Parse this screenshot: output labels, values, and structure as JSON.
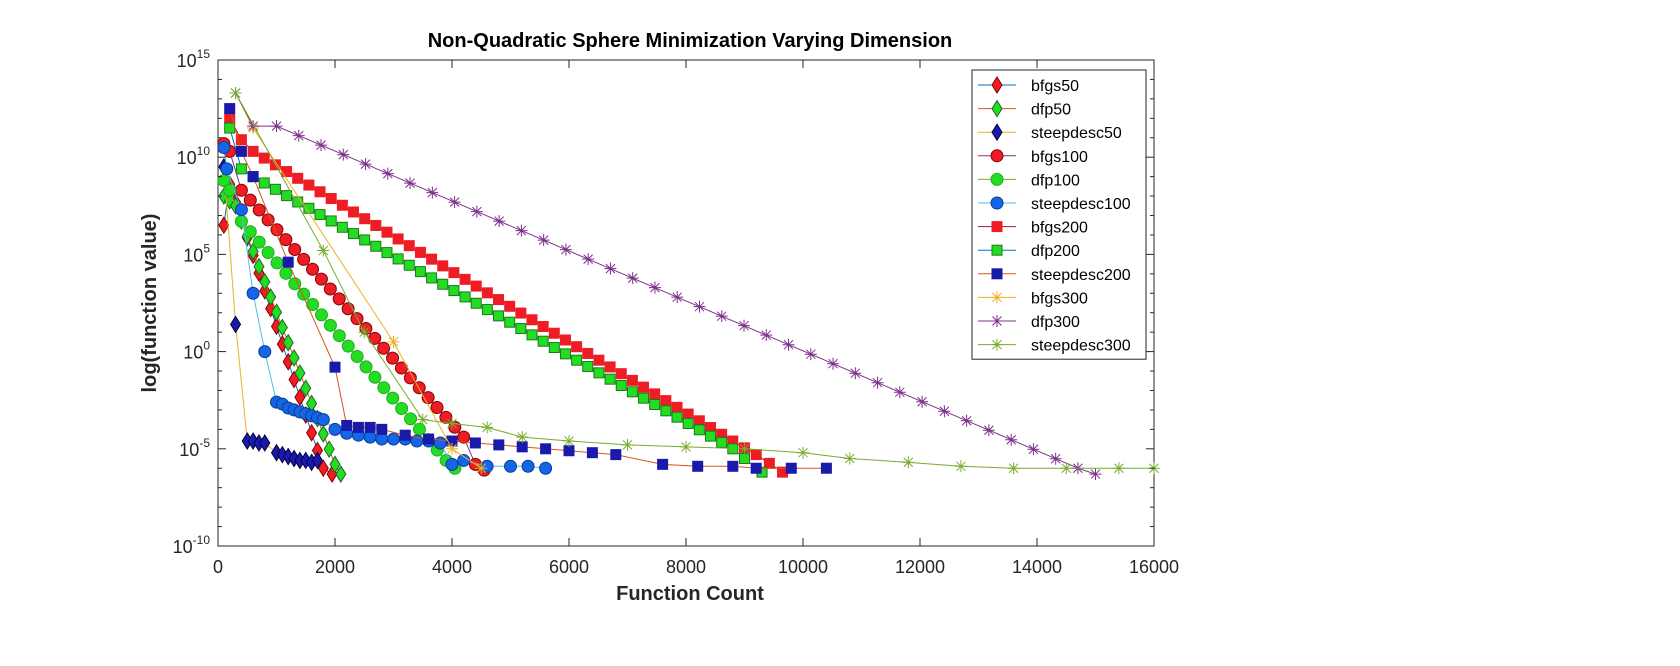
{
  "chart_data": {
    "type": "line",
    "title": "Non-Quadratic Sphere Minimization Varying Dimension",
    "xlabel": "Function Count",
    "ylabel": "log(function value)",
    "xlim": [
      0,
      16000
    ],
    "ylim_log10": [
      -10,
      15
    ],
    "y_scale": "log",
    "x_ticks": [
      "0",
      "2000",
      "4000",
      "6000",
      "8000",
      "10000",
      "12000",
      "14000",
      "16000"
    ],
    "y_ticks": [
      {
        "base": "10",
        "exp": "-10",
        "value": -10
      },
      {
        "base": "10",
        "exp": "-5",
        "value": -5
      },
      {
        "base": "10",
        "exp": "0",
        "value": 0
      },
      {
        "base": "10",
        "exp": "5",
        "value": 5
      },
      {
        "base": "10",
        "exp": "10",
        "value": 10
      },
      {
        "base": "10",
        "exp": "15",
        "value": 15
      }
    ],
    "grid": false,
    "legend_position": "top-right",
    "series": [
      {
        "name": "bfgs50",
        "marker": "diamond",
        "line_color": "#0072BD",
        "marker_fill": "#EE1C24",
        "marker_edge": "#8B0000",
        "points": [
          [
            100,
            6.5
          ],
          [
            200,
            8.6
          ],
          [
            1800,
            -6.0
          ],
          [
            1950,
            -6.3
          ]
        ]
      },
      {
        "name": "dfp50",
        "marker": "diamond",
        "line_color": "#D95319",
        "marker_fill": "#22DD22",
        "marker_edge": "#226622",
        "points": [
          [
            100,
            8.0
          ],
          [
            300,
            7.5
          ],
          [
            2000,
            -5.8
          ],
          [
            2100,
            -6.3
          ]
        ]
      },
      {
        "name": "steepdesc50",
        "marker": "diamond",
        "line_color": "#EDB120",
        "marker_fill": "#1A1AAA",
        "marker_edge": "#00004A",
        "points": [
          [
            100,
            9.5
          ],
          [
            300,
            1.4
          ],
          [
            500,
            -4.6
          ],
          [
            600,
            -4.6
          ],
          [
            700,
            -4.7
          ],
          [
            800,
            -4.7
          ],
          [
            1000,
            -5.2
          ],
          [
            1100,
            -5.3
          ],
          [
            1200,
            -5.4
          ],
          [
            1300,
            -5.5
          ],
          [
            1400,
            -5.6
          ],
          [
            1500,
            -5.6
          ],
          [
            1600,
            -5.7
          ],
          [
            1700,
            -5.6
          ]
        ]
      },
      {
        "name": "bfgs100",
        "marker": "circle",
        "line_color": "#7E2F8E",
        "marker_fill": "#EE1C24",
        "marker_edge": "#8B0000",
        "points": [
          [
            100,
            10.7
          ],
          [
            200,
            10.3
          ],
          [
            400,
            8.3
          ],
          [
            4200,
            -4.4
          ],
          [
            4400,
            -5.8
          ],
          [
            4550,
            -6.1
          ]
        ]
      },
      {
        "name": "dfp100",
        "marker": "circle",
        "line_color": "#77AC30",
        "marker_fill": "#22DD22",
        "marker_edge": "#22AA22",
        "points": [
          [
            100,
            8.8
          ],
          [
            200,
            8.3
          ],
          [
            400,
            6.7
          ],
          [
            3900,
            -5.6
          ],
          [
            4050,
            -6.0
          ]
        ]
      },
      {
        "name": "steepdesc100",
        "marker": "circle",
        "line_color": "#4DBEEE",
        "marker_fill": "#1565E8",
        "marker_edge": "#0A3D91",
        "points": [
          [
            100,
            10.5
          ],
          [
            150,
            9.4
          ],
          [
            400,
            7.3
          ],
          [
            600,
            3.0
          ],
          [
            800,
            0.0
          ],
          [
            1000,
            -2.6
          ],
          [
            1100,
            -2.7
          ],
          [
            1200,
            -2.9
          ],
          [
            1300,
            -3.0
          ],
          [
            1400,
            -3.1
          ],
          [
            1500,
            -3.2
          ],
          [
            1600,
            -3.3
          ],
          [
            1700,
            -3.4
          ],
          [
            1800,
            -3.5
          ],
          [
            2000,
            -4.0
          ],
          [
            2200,
            -4.2
          ],
          [
            2400,
            -4.3
          ],
          [
            2600,
            -4.4
          ],
          [
            2800,
            -4.5
          ],
          [
            3000,
            -4.5
          ],
          [
            3200,
            -4.5
          ],
          [
            3400,
            -4.6
          ],
          [
            3600,
            -4.6
          ],
          [
            3800,
            -4.7
          ],
          [
            4000,
            -5.8
          ],
          [
            4200,
            -5.6
          ],
          [
            4600,
            -5.9
          ],
          [
            5000,
            -5.9
          ],
          [
            5300,
            -5.9
          ],
          [
            5600,
            -6.0
          ]
        ]
      },
      {
        "name": "bfgs200",
        "marker": "square",
        "line_color": "#A2142F",
        "marker_fill": "#EE1C24",
        "marker_edge": "#EE1C24",
        "points": [
          [
            200,
            12.0
          ],
          [
            400,
            10.9
          ],
          [
            600,
            10.3
          ],
          [
            8800,
            -4.6
          ],
          [
            9200,
            -5.3
          ],
          [
            9650,
            -6.2
          ]
        ]
      },
      {
        "name": "dfp200",
        "marker": "square",
        "line_color": "#0072BD",
        "marker_fill": "#22DD22",
        "marker_edge": "#1A7A1A",
        "points": [
          [
            200,
            11.5
          ],
          [
            400,
            9.4
          ],
          [
            600,
            9.0
          ],
          [
            8800,
            -5.0
          ],
          [
            9000,
            -5.5
          ],
          [
            9300,
            -6.2
          ]
        ]
      },
      {
        "name": "steepdesc200",
        "marker": "square",
        "line_color": "#D95319",
        "marker_fill": "#1A1AAA",
        "marker_edge": "#1A1AAA",
        "points": [
          [
            200,
            12.5
          ],
          [
            400,
            10.3
          ],
          [
            600,
            9.0
          ],
          [
            1200,
            4.6
          ],
          [
            2000,
            -0.8
          ],
          [
            2200,
            -3.8
          ],
          [
            2400,
            -3.9
          ],
          [
            2600,
            -3.9
          ],
          [
            2800,
            -4.0
          ],
          [
            3200,
            -4.3
          ],
          [
            3600,
            -4.5
          ],
          [
            4000,
            -4.6
          ],
          [
            4400,
            -4.7
          ],
          [
            4800,
            -4.8
          ],
          [
            5200,
            -4.9
          ],
          [
            5600,
            -5.0
          ],
          [
            6000,
            -5.1
          ],
          [
            6400,
            -5.2
          ],
          [
            6800,
            -5.3
          ],
          [
            7600,
            -5.8
          ],
          [
            8200,
            -5.9
          ],
          [
            8800,
            -5.9
          ],
          [
            9200,
            -6.0
          ],
          [
            9800,
            -6.0
          ],
          [
            10400,
            -6.0
          ]
        ]
      },
      {
        "name": "bfgs300",
        "marker": "star",
        "line_color": "#EDB120",
        "marker_fill": "#EDB120",
        "marker_edge": "#EDB120",
        "points": [
          [
            300,
            13.3
          ],
          [
            600,
            11.5
          ],
          [
            3000,
            0.5
          ],
          [
            4000,
            -5.0
          ],
          [
            4500,
            -6.0
          ]
        ]
      },
      {
        "name": "dfp300",
        "marker": "star",
        "line_color": "#7E2F8E",
        "marker_fill": "#7E2F8E",
        "marker_edge": "#7E2F8E",
        "points": [
          [
            300,
            13.3
          ],
          [
            600,
            11.6
          ],
          [
            1000,
            11.6
          ],
          [
            14700,
            -6.0
          ],
          [
            15000,
            -6.3
          ]
        ]
      },
      {
        "name": "steepdesc300",
        "marker": "star",
        "line_color": "#77AC30",
        "marker_fill": "#77AC30",
        "marker_edge": "#77AC30",
        "points": [
          [
            300,
            13.3
          ],
          [
            1800,
            5.2
          ],
          [
            2500,
            1.0
          ],
          [
            3500,
            -3.5
          ],
          [
            4000,
            -3.7
          ],
          [
            4600,
            -3.9
          ],
          [
            5200,
            -4.4
          ],
          [
            6000,
            -4.6
          ],
          [
            7000,
            -4.8
          ],
          [
            8000,
            -4.9
          ],
          [
            9000,
            -5.0
          ],
          [
            10000,
            -5.2
          ],
          [
            10800,
            -5.5
          ],
          [
            11800,
            -5.7
          ],
          [
            12700,
            -5.9
          ],
          [
            13600,
            -6.0
          ],
          [
            14500,
            -6.0
          ],
          [
            15400,
            -6.0
          ],
          [
            16000,
            -6.0
          ]
        ]
      }
    ]
  }
}
